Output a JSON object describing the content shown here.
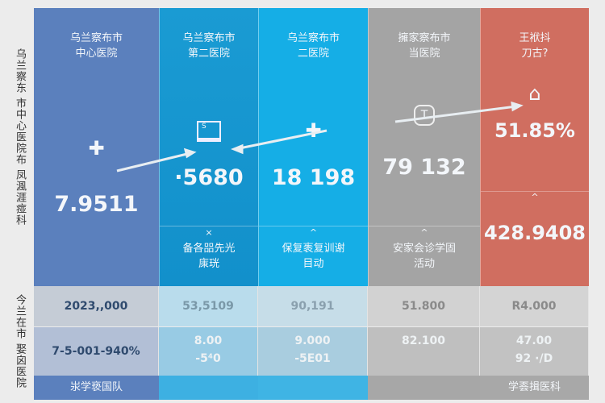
{
  "side_labels": [
    "乌兰察东 市中心医院布 凤渢涯痖科",
    "今兰在市 娶囟医院"
  ],
  "columns": [
    {
      "title": [
        "乌兰察布市",
        "中心医院"
      ],
      "icon": "medical-cross-icon",
      "value": "7.9511",
      "color": "#5b80bd"
    },
    {
      "title": [
        "乌兰察布市",
        "第二医院"
      ],
      "icon": "monitor-icon",
      "value": "·5680",
      "sub": [
        "备各㗊先光",
        "㢀珖"
      ],
      "sub_chev": "×",
      "color": "#1595cf"
    },
    {
      "title": [
        "乌兰察布市",
        "二医院"
      ],
      "icon": "medical-cross-icon",
      "value": "18 198",
      "sub": [
        "保复袠复训谢",
        "目动"
      ],
      "sub_chev": "^",
      "color": "#15aee6"
    },
    {
      "title": [
        "擁家察布市",
        "当医院"
      ],
      "icon": "hospital-badge-icon",
      "value": "79 132",
      "sub": [
        "安家会诊学固",
        "活动"
      ],
      "sub_chev": "^",
      "color": "#a4a4a4"
    },
    {
      "title": [
        "王袱抖",
        "刀古?"
      ],
      "icon": "home-icon",
      "value": "51.85%",
      "value2": "428.9408",
      "sub_chev": "^",
      "color": "#d06e60"
    }
  ],
  "row1": [
    "2023,,000",
    "53,5109",
    "90,191",
    "51.800",
    "R4.000"
  ],
  "row2": [
    [
      "7-5-001-940%"
    ],
    [
      "8.00",
      "-5⁴0"
    ],
    [
      "9.000",
      "-5E01"
    ],
    [
      "82.100"
    ],
    [
      "47.00",
      "92 ·/D"
    ]
  ],
  "footer": [
    "汖学亵国队",
    "",
    "",
    "",
    "学𠀾揖医科"
  ]
}
